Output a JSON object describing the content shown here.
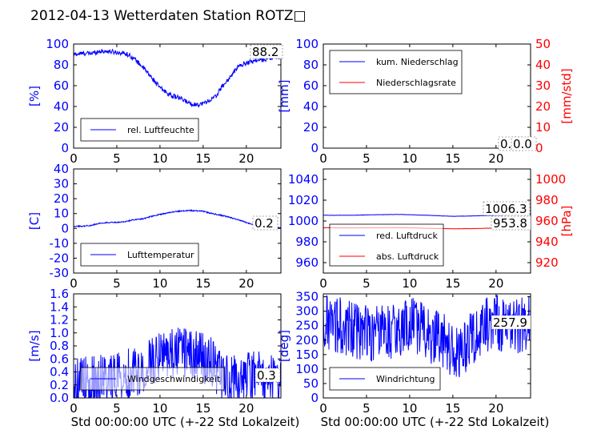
{
  "title": "2012-04-13 Wetterdaten Station ROTZ□",
  "colors": {
    "blue": "#0000ff",
    "red": "#ff0000",
    "black": "#000000"
  },
  "chart_data": [
    {
      "id": "p1",
      "type": "line",
      "xlim": [
        0,
        24
      ],
      "xticks": [
        0,
        5,
        10,
        15,
        20
      ],
      "ylim": [
        0,
        100
      ],
      "yticks": [
        0,
        20,
        40,
        60,
        80,
        100
      ],
      "ylabel": "[%]",
      "legend_position": "lower-left",
      "last_value": "88.2",
      "series": [
        {
          "name": "rel. Luftfeuchte",
          "color": "#0000ff",
          "noise": 2.2,
          "x": [
            0,
            1,
            2,
            3,
            4,
            5,
            6,
            6.5,
            7,
            7.5,
            8,
            8.5,
            9,
            9.5,
            10,
            10.5,
            11,
            11.5,
            12,
            12.5,
            13,
            13.5,
            14,
            14.5,
            15,
            15.5,
            16,
            16.5,
            17,
            17.5,
            18,
            18.5,
            19,
            20,
            21,
            22,
            23,
            24
          ],
          "y": [
            90,
            91,
            91,
            93,
            93,
            92,
            91,
            89,
            86,
            82,
            78,
            73,
            68,
            63,
            58,
            55,
            52,
            50,
            49,
            47,
            45,
            43,
            42,
            42,
            43,
            45,
            47,
            50,
            57,
            62,
            67,
            72,
            78,
            82,
            84,
            85,
            87,
            88
          ]
        }
      ]
    },
    {
      "id": "p2",
      "type": "line",
      "xlim": [
        0,
        24
      ],
      "xticks": [
        0,
        5,
        10,
        15,
        20
      ],
      "ylim": [
        0,
        100
      ],
      "yticks": [
        0,
        20,
        40,
        60,
        80,
        100
      ],
      "ylabel": "[mm]",
      "ylim_right": [
        0,
        50
      ],
      "yticks_right": [
        0,
        10,
        20,
        30,
        40,
        50
      ],
      "ylabel_right": "[mm/std]",
      "legend_position": "upper-left",
      "last_value": "0.0",
      "last_value_2": "0.0",
      "series": [
        {
          "name": "kum. Niederschlag",
          "color": "#0000ff",
          "noise": 0,
          "x": [
            0,
            24
          ],
          "y": [
            0,
            0
          ]
        },
        {
          "name": "Niederschlagsrate",
          "color": "#ff0000",
          "noise": 0,
          "axis": "right",
          "x": [
            0,
            24
          ],
          "y": [
            0,
            0
          ]
        }
      ]
    },
    {
      "id": "p3",
      "type": "line",
      "xlim": [
        0,
        24
      ],
      "xticks": [
        0,
        5,
        10,
        15,
        20
      ],
      "ylim": [
        -30,
        40
      ],
      "yticks": [
        -30,
        -20,
        -10,
        0,
        10,
        20,
        30,
        40
      ],
      "ylabel": "[C]",
      "legend_position": "lower-left",
      "last_value": "0.2",
      "series": [
        {
          "name": "Lufttemperatur",
          "color": "#0000ff",
          "noise": 0.4,
          "x": [
            0,
            1,
            2,
            3,
            4,
            5,
            6,
            7,
            8,
            9,
            10,
            11,
            12,
            13,
            14,
            15,
            16,
            17,
            18,
            19,
            20,
            21,
            22,
            23,
            24
          ],
          "y": [
            1.5,
            1.5,
            2,
            3.5,
            4,
            4,
            4.5,
            6,
            6.5,
            8,
            9.5,
            10.5,
            11.5,
            12,
            12,
            11.5,
            10,
            9,
            7.5,
            6,
            4,
            2.5,
            1.5,
            0.8,
            0.2
          ]
        }
      ]
    },
    {
      "id": "p4",
      "type": "line",
      "xlim": [
        0,
        24
      ],
      "xticks": [
        0,
        5,
        10,
        15,
        20
      ],
      "ylim": [
        950,
        1050
      ],
      "yticks": [
        960,
        980,
        1000,
        1020,
        1040
      ],
      "ylabel_right": "[hPa]",
      "ylim_right": [
        910,
        1010
      ],
      "yticks_right": [
        920,
        940,
        960,
        980,
        1000
      ],
      "legend_position": "lower-left",
      "last_value": "1006.3",
      "last_value_2": "953.8",
      "series": [
        {
          "name": "red. Luftdruck",
          "color": "#0000ff",
          "noise": 0.15,
          "x": [
            0,
            3,
            6,
            9,
            12,
            15,
            18,
            21,
            24
          ],
          "y": [
            1005.5,
            1005.5,
            1006,
            1006.3,
            1005.5,
            1004.5,
            1005,
            1005.8,
            1006.3
          ]
        },
        {
          "name": "abs. Luftdruck",
          "color": "#ff0000",
          "noise": 0.15,
          "axis": "right",
          "x": [
            0,
            3,
            6,
            9,
            12,
            15,
            18,
            21,
            24
          ],
          "y": [
            953.5,
            953.4,
            953.5,
            953.6,
            953.0,
            952.5,
            952.8,
            953.4,
            953.8
          ]
        }
      ]
    },
    {
      "id": "p5",
      "type": "line",
      "xlim": [
        0,
        24
      ],
      "xticks": [
        0,
        5,
        10,
        15,
        20
      ],
      "ylim": [
        0,
        1.6
      ],
      "yticks": [
        0.0,
        0.2,
        0.4,
        0.6,
        0.8,
        1.0,
        1.2,
        1.4,
        1.6
      ],
      "ylabel": "[m/s]",
      "xlabel": "Std 00:00:00 UTC (+-22 Std Lokalzeit)",
      "legend_position": "lower-left",
      "last_value": "0.3",
      "series": [
        {
          "name": "Windgeschwindigkeit",
          "color": "#0000ff",
          "noise": 0.28,
          "spiky": true,
          "x": [
            0,
            2,
            4,
            6,
            7,
            8,
            9,
            10,
            11,
            12,
            13,
            14,
            15,
            16,
            17,
            18,
            19,
            20,
            21,
            22,
            23,
            24
          ],
          "y": [
            0.25,
            0.25,
            0.3,
            0.35,
            0.4,
            0.45,
            0.55,
            0.65,
            0.65,
            0.7,
            0.7,
            0.65,
            0.6,
            0.55,
            0.35,
            0.25,
            0.3,
            0.3,
            0.35,
            0.3,
            0.3,
            0.3
          ]
        }
      ]
    },
    {
      "id": "p6",
      "type": "line",
      "xlim": [
        0,
        24
      ],
      "xticks": [
        0,
        5,
        10,
        15,
        20
      ],
      "ylim": [
        0,
        360
      ],
      "yticks": [
        0,
        50,
        100,
        150,
        200,
        250,
        300,
        350
      ],
      "ylabel": "[deg]",
      "xlabel": "Std 00:00:00 UTC (+-22 Std Lokalzeit)",
      "legend_position": "lower-left",
      "last_value": "257.9",
      "series": [
        {
          "name": "Windrichtung",
          "color": "#0000ff",
          "noise": 70,
          "spiky": true,
          "x": [
            0,
            2,
            4,
            6,
            8,
            10,
            12,
            14,
            15,
            16,
            17,
            18,
            20,
            22,
            24
          ],
          "y": [
            260,
            250,
            230,
            220,
            230,
            260,
            220,
            200,
            150,
            150,
            200,
            240,
            260,
            250,
            260
          ]
        }
      ]
    }
  ]
}
